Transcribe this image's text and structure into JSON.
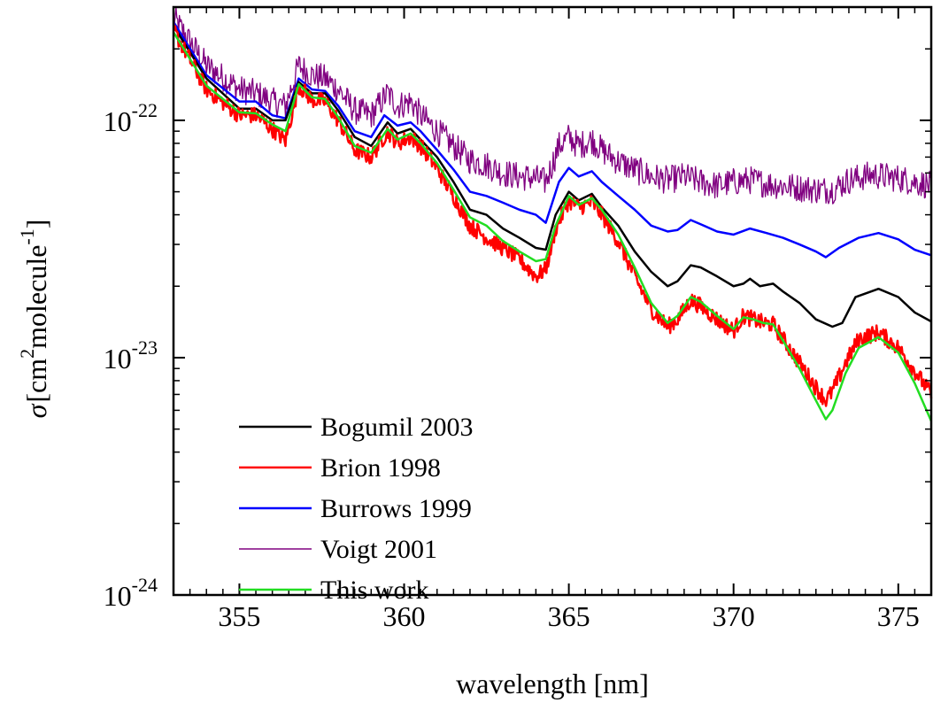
{
  "chart_data": {
    "type": "line",
    "title": "",
    "xlabel": "wavelength [nm]",
    "ylabel": {
      "symbol": "σ",
      "open": "[cm",
      "sup1": "2",
      "middle": "molecule",
      "sup2": "-1",
      "close": "]"
    },
    "xlim": [
      353,
      376
    ],
    "ylim": [
      1e-24,
      3e-22
    ],
    "yscale": "log",
    "x_ticks": [
      {
        "value": 355,
        "label": "355"
      },
      {
        "value": 360,
        "label": "360"
      },
      {
        "value": 365,
        "label": "365"
      },
      {
        "value": 370,
        "label": "370"
      },
      {
        "value": 375,
        "label": "375"
      }
    ],
    "y_ticks": [
      {
        "value": 1e-24,
        "base": "10",
        "exp": "-24"
      },
      {
        "value": 1e-23,
        "base": "10",
        "exp": "-23"
      },
      {
        "value": 1e-22,
        "base": "10",
        "exp": "-22"
      }
    ],
    "grid": false,
    "legend_position": "lower-left",
    "series": [
      {
        "name": "Bogumil 2003",
        "color": "#000000",
        "width": 2.5,
        "noise": 0,
        "points": [
          [
            353,
            2.5e-22
          ],
          [
            354,
            1.5e-22
          ],
          [
            355,
            1.12e-22
          ],
          [
            355.5,
            1.12e-22
          ],
          [
            356,
            1e-22
          ],
          [
            356.4,
            1e-22
          ],
          [
            356.8,
            1.45e-22
          ],
          [
            357.2,
            1.3e-22
          ],
          [
            357.6,
            1.3e-22
          ],
          [
            358,
            1.1e-22
          ],
          [
            358.5,
            8.5e-23
          ],
          [
            359,
            7.8e-23
          ],
          [
            359.5,
            9.8e-23
          ],
          [
            359.8,
            8.8e-23
          ],
          [
            360.2,
            9.2e-23
          ],
          [
            360.5,
            8.3e-23
          ],
          [
            361,
            7e-23
          ],
          [
            361.5,
            5.5e-23
          ],
          [
            362,
            4.2e-23
          ],
          [
            362.5,
            4e-23
          ],
          [
            363,
            3.5e-23
          ],
          [
            363.5,
            3.2e-23
          ],
          [
            364,
            2.9e-23
          ],
          [
            364.3,
            2.85e-23
          ],
          [
            364.6,
            4e-23
          ],
          [
            365,
            5e-23
          ],
          [
            365.3,
            4.6e-23
          ],
          [
            365.7,
            4.9e-23
          ],
          [
            366,
            4.3e-23
          ],
          [
            366.5,
            3.6e-23
          ],
          [
            367,
            2.8e-23
          ],
          [
            367.5,
            2.3e-23
          ],
          [
            368,
            2e-23
          ],
          [
            368.3,
            2.1e-23
          ],
          [
            368.7,
            2.45e-23
          ],
          [
            369,
            2.4e-23
          ],
          [
            369.5,
            2.2e-23
          ],
          [
            370,
            2e-23
          ],
          [
            370.3,
            2.05e-23
          ],
          [
            370.5,
            2.15e-23
          ],
          [
            370.8,
            2e-23
          ],
          [
            371.2,
            2.05e-23
          ],
          [
            371.5,
            1.9e-23
          ],
          [
            372,
            1.7e-23
          ],
          [
            372.5,
            1.45e-23
          ],
          [
            373,
            1.35e-23
          ],
          [
            373.3,
            1.4e-23
          ],
          [
            373.7,
            1.8e-23
          ],
          [
            374.4,
            1.95e-23
          ],
          [
            375,
            1.8e-23
          ],
          [
            375.5,
            1.55e-23
          ],
          [
            376,
            1.42e-23
          ]
        ]
      },
      {
        "name": "Brion 1998",
        "color": "#ff0000",
        "width": 2.5,
        "noise": 0.035,
        "points": [
          [
            353,
            2.4e-22
          ],
          [
            354,
            1.35e-22
          ],
          [
            355,
            1.05e-22
          ],
          [
            355.5,
            1.05e-22
          ],
          [
            356,
            9.2e-23
          ],
          [
            356.4,
            8.2e-23
          ],
          [
            356.8,
            1.4e-22
          ],
          [
            357.2,
            1.22e-22
          ],
          [
            357.6,
            1.2e-22
          ],
          [
            358,
            1e-22
          ],
          [
            358.5,
            7.5e-23
          ],
          [
            359,
            7e-23
          ],
          [
            359.5,
            9e-23
          ],
          [
            359.8,
            8e-23
          ],
          [
            360.2,
            8.5e-23
          ],
          [
            360.5,
            7.8e-23
          ],
          [
            361,
            6.3e-23
          ],
          [
            361.5,
            4.8e-23
          ],
          [
            362,
            3.6e-23
          ],
          [
            362.5,
            3.2e-23
          ],
          [
            363,
            2.9e-23
          ],
          [
            363.5,
            2.6e-23
          ],
          [
            364,
            2.2e-23
          ],
          [
            364.3,
            2.35e-23
          ],
          [
            364.6,
            3.5e-23
          ],
          [
            365,
            4.6e-23
          ],
          [
            365.3,
            4.3e-23
          ],
          [
            365.7,
            4.5e-23
          ],
          [
            366,
            4e-23
          ],
          [
            366.5,
            3.1e-23
          ],
          [
            367,
            2.2e-23
          ],
          [
            367.5,
            1.6e-23
          ],
          [
            368,
            1.35e-23
          ],
          [
            368.3,
            1.45e-23
          ],
          [
            368.7,
            1.75e-23
          ],
          [
            369,
            1.65e-23
          ],
          [
            369.5,
            1.45e-23
          ],
          [
            370,
            1.3e-23
          ],
          [
            370.3,
            1.5e-23
          ],
          [
            370.6,
            1.45e-23
          ],
          [
            370.9,
            1.4e-23
          ],
          [
            371.2,
            1.38e-23
          ],
          [
            371.5,
            1.2e-23
          ],
          [
            372,
            9.5e-24
          ],
          [
            372.5,
            7.5e-24
          ],
          [
            372.8,
            6.6e-24
          ],
          [
            373,
            7.2e-24
          ],
          [
            373.4,
            9.5e-24
          ],
          [
            373.8,
            1.2e-23
          ],
          [
            374.4,
            1.28e-23
          ],
          [
            375,
            1.1e-23
          ],
          [
            375.5,
            8.8e-24
          ],
          [
            376,
            7e-24
          ]
        ]
      },
      {
        "name": "Burrows 1999",
        "color": "#0000ff",
        "width": 2.5,
        "noise": 0,
        "points": [
          [
            353,
            2.6e-22
          ],
          [
            354,
            1.55e-22
          ],
          [
            355,
            1.2e-22
          ],
          [
            355.5,
            1.2e-22
          ],
          [
            356,
            1.05e-22
          ],
          [
            356.4,
            1.02e-22
          ],
          [
            356.8,
            1.5e-22
          ],
          [
            357.2,
            1.35e-22
          ],
          [
            357.6,
            1.33e-22
          ],
          [
            358,
            1.15e-22
          ],
          [
            358.5,
            9e-23
          ],
          [
            359,
            8.5e-23
          ],
          [
            359.4,
            1.05e-22
          ],
          [
            359.8,
            9.5e-23
          ],
          [
            360.2,
            9.8e-23
          ],
          [
            360.5,
            9e-23
          ],
          [
            361,
            7.5e-23
          ],
          [
            361.5,
            6.2e-23
          ],
          [
            362,
            5e-23
          ],
          [
            362.5,
            4.8e-23
          ],
          [
            363,
            4.5e-23
          ],
          [
            363.5,
            4.2e-23
          ],
          [
            364,
            4e-23
          ],
          [
            364.3,
            3.7e-23
          ],
          [
            364.7,
            5.5e-23
          ],
          [
            365,
            6.3e-23
          ],
          [
            365.3,
            5.8e-23
          ],
          [
            365.7,
            6.1e-23
          ],
          [
            366,
            5.5e-23
          ],
          [
            366.5,
            4.8e-23
          ],
          [
            367,
            4.2e-23
          ],
          [
            367.5,
            3.6e-23
          ],
          [
            368,
            3.4e-23
          ],
          [
            368.3,
            3.45e-23
          ],
          [
            368.7,
            3.8e-23
          ],
          [
            369,
            3.65e-23
          ],
          [
            369.5,
            3.4e-23
          ],
          [
            370,
            3.3e-23
          ],
          [
            370.5,
            3.5e-23
          ],
          [
            371,
            3.35e-23
          ],
          [
            371.5,
            3.2e-23
          ],
          [
            372,
            3e-23
          ],
          [
            372.5,
            2.8e-23
          ],
          [
            372.8,
            2.65e-23
          ],
          [
            373.2,
            2.9e-23
          ],
          [
            373.8,
            3.2e-23
          ],
          [
            374.4,
            3.35e-23
          ],
          [
            375,
            3.15e-23
          ],
          [
            375.5,
            2.85e-23
          ],
          [
            376,
            2.7e-23
          ]
        ]
      },
      {
        "name": "Voigt 2001",
        "color": "#800080",
        "width": 1.3,
        "noise": 0.06,
        "points": [
          [
            353,
            2.7e-22
          ],
          [
            354,
            1.7e-22
          ],
          [
            355,
            1.35e-22
          ],
          [
            355.5,
            1.3e-22
          ],
          [
            356,
            1.2e-22
          ],
          [
            356.4,
            1.15e-22
          ],
          [
            356.8,
            1.7e-22
          ],
          [
            357.2,
            1.55e-22
          ],
          [
            357.6,
            1.5e-22
          ],
          [
            358,
            1.35e-22
          ],
          [
            358.5,
            1.1e-22
          ],
          [
            359,
            1.05e-22
          ],
          [
            359.5,
            1.3e-22
          ],
          [
            359.8,
            1.15e-22
          ],
          [
            360.2,
            1.2e-22
          ],
          [
            360.5,
            1.05e-22
          ],
          [
            361,
            9e-23
          ],
          [
            361.5,
            7.8e-23
          ],
          [
            362,
            6.8e-23
          ],
          [
            362.5,
            6.5e-23
          ],
          [
            363,
            6e-23
          ],
          [
            363.5,
            5.8e-23
          ],
          [
            364,
            5.7e-23
          ],
          [
            364.3,
            5.5e-23
          ],
          [
            364.7,
            7.8e-23
          ],
          [
            365,
            8.5e-23
          ],
          [
            365.3,
            7.8e-23
          ],
          [
            365.7,
            8.3e-23
          ],
          [
            366,
            7.5e-23
          ],
          [
            366.5,
            6.7e-23
          ],
          [
            367,
            6.2e-23
          ],
          [
            367.5,
            5.8e-23
          ],
          [
            368,
            5.6e-23
          ],
          [
            368.5,
            5.8e-23
          ],
          [
            369,
            5.5e-23
          ],
          [
            369.5,
            5.3e-23
          ],
          [
            370,
            5.5e-23
          ],
          [
            370.5,
            5.6e-23
          ],
          [
            371,
            5.4e-23
          ],
          [
            371.5,
            5.3e-23
          ],
          [
            372,
            5.2e-23
          ],
          [
            372.5,
            5.1e-23
          ],
          [
            373,
            5.1e-23
          ],
          [
            373.5,
            5.6e-23
          ],
          [
            374.2,
            5.9e-23
          ],
          [
            375,
            5.7e-23
          ],
          [
            375.5,
            5.5e-23
          ],
          [
            376,
            5.3e-23
          ]
        ]
      },
      {
        "name": "This work",
        "color": "#22dd22",
        "width": 2.5,
        "noise": 0,
        "points": [
          [
            353,
            2.35e-22
          ],
          [
            354,
            1.4e-22
          ],
          [
            355,
            1.08e-22
          ],
          [
            355.5,
            1.07e-22
          ],
          [
            356,
            9.6e-23
          ],
          [
            356.4,
            9e-23
          ],
          [
            356.8,
            1.42e-22
          ],
          [
            357.2,
            1.25e-22
          ],
          [
            357.6,
            1.23e-22
          ],
          [
            358,
            1.03e-22
          ],
          [
            358.5,
            7.8e-23
          ],
          [
            359,
            7.3e-23
          ],
          [
            359.5,
            9.2e-23
          ],
          [
            359.8,
            8.3e-23
          ],
          [
            360.2,
            8.8e-23
          ],
          [
            360.5,
            8e-23
          ],
          [
            361,
            6.6e-23
          ],
          [
            361.5,
            5.1e-23
          ],
          [
            362,
            3.9e-23
          ],
          [
            362.5,
            3.6e-23
          ],
          [
            363,
            3.1e-23
          ],
          [
            363.5,
            2.8e-23
          ],
          [
            364,
            2.55e-23
          ],
          [
            364.3,
            2.6e-23
          ],
          [
            364.6,
            3.6e-23
          ],
          [
            365,
            4.8e-23
          ],
          [
            365.3,
            4.4e-23
          ],
          [
            365.7,
            4.7e-23
          ],
          [
            366,
            4.2e-23
          ],
          [
            366.5,
            3.3e-23
          ],
          [
            367,
            2.4e-23
          ],
          [
            367.5,
            1.7e-23
          ],
          [
            368,
            1.4e-23
          ],
          [
            368.3,
            1.5e-23
          ],
          [
            368.7,
            1.8e-23
          ],
          [
            369,
            1.72e-23
          ],
          [
            369.5,
            1.5e-23
          ],
          [
            370,
            1.32e-23
          ],
          [
            370.3,
            1.48e-23
          ],
          [
            370.6,
            1.45e-23
          ],
          [
            370.9,
            1.4e-23
          ],
          [
            371.2,
            1.38e-23
          ],
          [
            371.5,
            1.18e-23
          ],
          [
            372,
            9e-24
          ],
          [
            372.5,
            6.6e-24
          ],
          [
            372.8,
            5.5e-24
          ],
          [
            373,
            6e-24
          ],
          [
            373.4,
            8.6e-24
          ],
          [
            373.8,
            1.1e-23
          ],
          [
            374.4,
            1.22e-23
          ],
          [
            375,
            1.05e-23
          ],
          [
            375.5,
            7.8e-24
          ],
          [
            376,
            5.4e-24
          ]
        ]
      }
    ]
  }
}
